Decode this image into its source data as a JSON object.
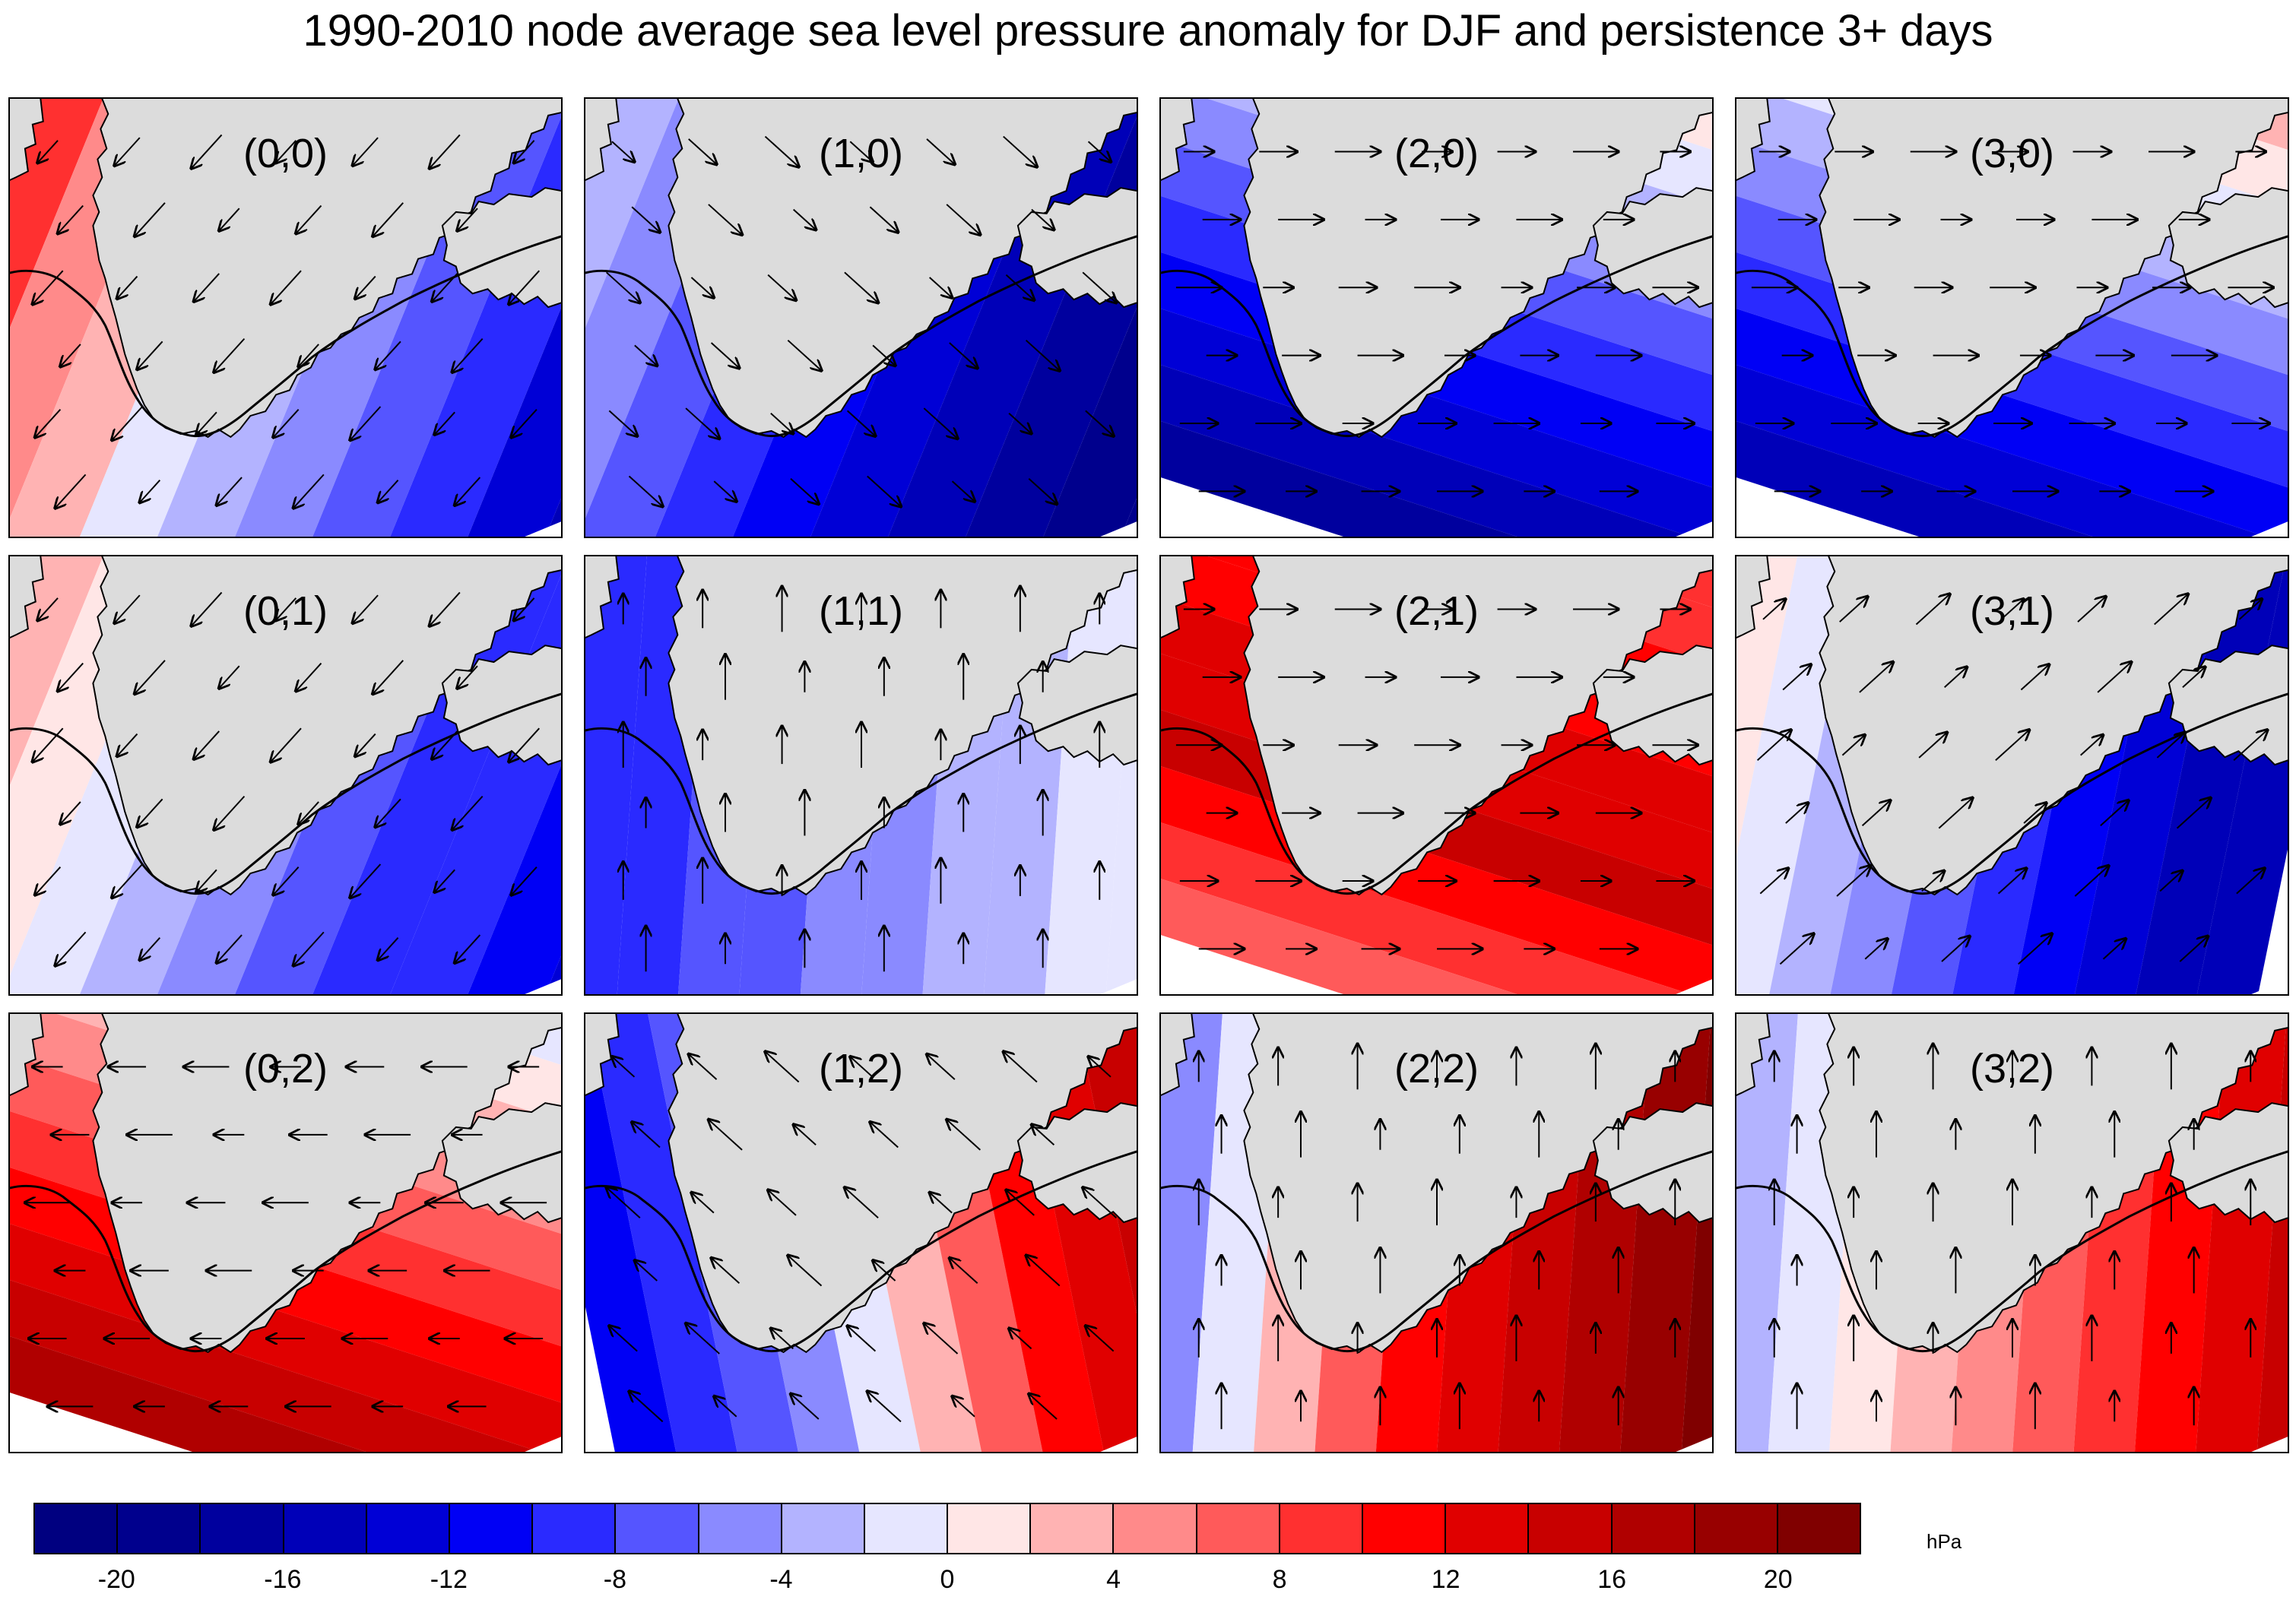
{
  "title": "1990-2010 node average sea level pressure anomaly  for DJF and persistence 3+ days",
  "colorbar": {
    "unit": "hPa",
    "ticks": [
      "-20",
      "-16",
      "-12",
      "-8",
      "-4",
      "0",
      "4",
      "8",
      "12",
      "16",
      "20"
    ],
    "colors": [
      "#000080",
      "#00008d",
      "#00009e",
      "#0000b8",
      "#0000d6",
      "#0000f5",
      "#2a2aff",
      "#5555ff",
      "#8a8aff",
      "#b3b3ff",
      "#e6e6ff",
      "#ffe6e6",
      "#ffb3b3",
      "#ff8a8a",
      "#ff5a5a",
      "#ff3030",
      "#ff0000",
      "#e00000",
      "#c80000",
      "#b00000",
      "#980000",
      "#800000"
    ]
  },
  "nodes": [
    {
      "label": "(0,0)",
      "bands": [
        "#ff5a5a",
        "#ff3030",
        "#ff8a8a",
        "#ffb3b3",
        "#e6e6ff",
        "#b3b3ff",
        "#8a8aff",
        "#5555ff",
        "#2a2aff",
        "#0000d6",
        "#0000b8"
      ],
      "wind": "sw"
    },
    {
      "label": "(1,0)",
      "bands": [
        "#e6e6ff",
        "#b3b3ff",
        "#8a8aff",
        "#5555ff",
        "#2a2aff",
        "#0000f5",
        "#0000d6",
        "#0000b8",
        "#00009e",
        "#00008d",
        "#00008d"
      ],
      "wind": "se"
    },
    {
      "label": "(2,0)",
      "bands": [
        "#ffb3b3",
        "#ffe6e6",
        "#e6e6ff",
        "#b3b3ff",
        "#8a8aff",
        "#5555ff",
        "#2a2aff",
        "#0000f5",
        "#0000d6",
        "#0000b8",
        "#00009e"
      ],
      "wind": "e"
    },
    {
      "label": "(3,0)",
      "bands": [
        "#ff8a8a",
        "#ffb3b3",
        "#ffe6e6",
        "#e6e6ff",
        "#b3b3ff",
        "#8a8aff",
        "#5555ff",
        "#2a2aff",
        "#0000f5",
        "#0000d6",
        "#0000b8"
      ],
      "wind": "e"
    },
    {
      "label": "(0,1)",
      "bands": [
        "#ff8a8a",
        "#ffb3b3",
        "#ffe6e6",
        "#e6e6ff",
        "#b3b3ff",
        "#8a8aff",
        "#5555ff",
        "#2a2aff",
        "#2a2aff",
        "#0000f5",
        "#0000d6"
      ],
      "wind": "sw"
    },
    {
      "label": "(1,1)",
      "bands": [
        "#0000f5",
        "#2a2aff",
        "#2a2aff",
        "#5555ff",
        "#5555ff",
        "#8a8aff",
        "#8a8aff",
        "#b3b3ff",
        "#b3b3ff",
        "#e6e6ff",
        "#e6e6ff"
      ],
      "wind": "n"
    },
    {
      "label": "(2,1)",
      "bands": [
        "#ff5a5a",
        "#ff3030",
        "#ff3030",
        "#ff0000",
        "#ff0000",
        "#e00000",
        "#e00000",
        "#c80000",
        "#ff0000",
        "#ff3030",
        "#ff5a5a"
      ],
      "wind": "e"
    },
    {
      "label": "(3,1)",
      "bands": [
        "#ffb3b3",
        "#ffe6e6",
        "#e6e6ff",
        "#b3b3ff",
        "#8a8aff",
        "#5555ff",
        "#2a2aff",
        "#0000f5",
        "#0000d6",
        "#0000b8",
        "#0000b8"
      ],
      "wind": "ne"
    },
    {
      "label": "(0,2)",
      "bands": [
        "#b3b3ff",
        "#e6e6ff",
        "#ffe6e6",
        "#ffb3b3",
        "#ff8a8a",
        "#ff5a5a",
        "#ff3030",
        "#ff0000",
        "#e00000",
        "#c80000",
        "#b00000"
      ],
      "wind": "w"
    },
    {
      "label": "(1,2)",
      "bands": [
        "#0000f5",
        "#2a2aff",
        "#5555ff",
        "#8a8aff",
        "#e6e6ff",
        "#ffb3b3",
        "#ff5a5a",
        "#ff0000",
        "#e00000",
        "#c80000",
        "#980000"
      ],
      "wind": "nw"
    },
    {
      "label": "(2,2)",
      "bands": [
        "#5555ff",
        "#8a8aff",
        "#e6e6ff",
        "#ffb3b3",
        "#ff5a5a",
        "#ff0000",
        "#e00000",
        "#c80000",
        "#b00000",
        "#980000",
        "#800000"
      ],
      "wind": "n"
    },
    {
      "label": "(3,2)",
      "bands": [
        "#8a8aff",
        "#b3b3ff",
        "#e6e6ff",
        "#ffe6e6",
        "#ffb3b3",
        "#ff8a8a",
        "#ff5a5a",
        "#ff3030",
        "#ff0000",
        "#e00000",
        "#c80000"
      ],
      "wind": "n"
    }
  ]
}
